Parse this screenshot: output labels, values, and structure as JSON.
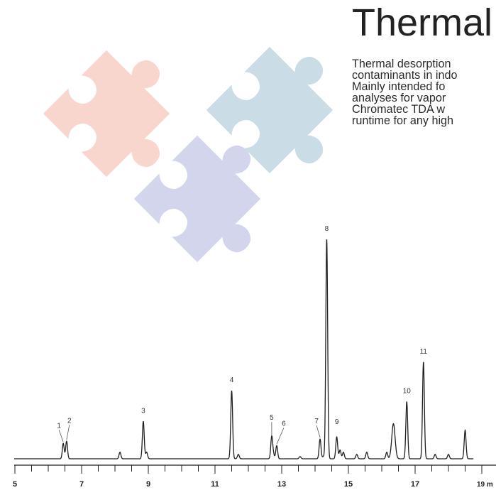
{
  "title": "Thermal",
  "intro_lines": [
    "Thermal desorption",
    "contaminants in indo",
    "Mainly intended fo",
    "analyses for vapor",
    "Chromatec TDA w",
    "runtime for any high"
  ],
  "colors": {
    "puzzle_pink": "#f8d6ce",
    "puzzle_blue": "#cadde7",
    "puzzle_lavender": "#d3d5ec",
    "trace": "#1f1f1f"
  },
  "chart_data": {
    "type": "line",
    "x_axis_label": "19 m",
    "x_ticks": [
      "5",
      "7",
      "9",
      "11",
      "13",
      "15",
      "17"
    ],
    "xlim": [
      5,
      19.2
    ],
    "peaks": [
      {
        "label": "1",
        "x": 6.45,
        "height": 7
      },
      {
        "label": "2",
        "x": 6.55,
        "height": 8
      },
      {
        "label": "3",
        "x": 8.85,
        "height": 17
      },
      {
        "label": "4",
        "x": 11.5,
        "height": 31
      },
      {
        "label": "5",
        "x": 12.7,
        "height": 10
      },
      {
        "label": "6",
        "x": 12.85,
        "height": 6
      },
      {
        "label": "7",
        "x": 14.15,
        "height": 9
      },
      {
        "label": "8",
        "x": 14.35,
        "height": 100
      },
      {
        "label": "9",
        "x": 14.65,
        "height": 10
      },
      {
        "label": "10",
        "x": 16.75,
        "height": 26
      },
      {
        "label": "11",
        "x": 17.25,
        "height": 44
      }
    ],
    "minor_peaks": [
      {
        "x": 8.15,
        "height": 3
      },
      {
        "x": 8.95,
        "height": 3
      },
      {
        "x": 11.7,
        "height": 2
      },
      {
        "x": 12.75,
        "height": 2
      },
      {
        "x": 13.55,
        "height": 1
      },
      {
        "x": 14.25,
        "height": 1
      },
      {
        "x": 14.75,
        "height": 4
      },
      {
        "x": 14.85,
        "height": 3
      },
      {
        "x": 15.25,
        "height": 2
      },
      {
        "x": 15.55,
        "height": 3
      },
      {
        "x": 16.15,
        "height": 3
      },
      {
        "x": 16.35,
        "height": 16
      },
      {
        "x": 17.6,
        "height": 2
      },
      {
        "x": 18.0,
        "height": 2
      },
      {
        "x": 18.5,
        "height": 13
      }
    ]
  }
}
